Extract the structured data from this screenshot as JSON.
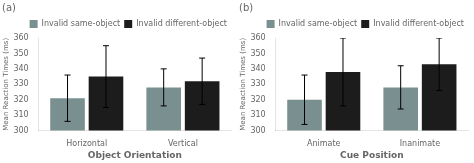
{
  "chart_data": [
    {
      "type": "bar",
      "title": "(a)",
      "xlabel": "Object Orientation",
      "ylabel": "Mean Reaction Times (ms)",
      "categories": [
        "Horizontal",
        "Vertical"
      ],
      "series": [
        {
          "name": "Invalid same-object",
          "color": "#7a9090",
          "values": [
            321,
            328
          ],
          "errors": [
            15,
            12
          ]
        },
        {
          "name": "Invalid different-object",
          "color": "#1c1c1c",
          "values": [
            335,
            332
          ],
          "errors": [
            20,
            15
          ]
        }
      ],
      "ylim": [
        300,
        360
      ],
      "yticks": [
        300,
        310,
        320,
        330,
        340,
        350,
        360
      ],
      "grid": false,
      "legend": "upper right"
    },
    {
      "type": "bar",
      "title": "(b)",
      "xlabel": "Cue Position",
      "ylabel": "Mean Reaction Times (ms)",
      "categories": [
        "Animate",
        "Inanimate"
      ],
      "series": [
        {
          "name": "Invalid same-object",
          "color": "#7a9090",
          "values": [
            320,
            328
          ],
          "errors": [
            16,
            14
          ]
        },
        {
          "name": "Invalid different-object",
          "color": "#1c1c1c",
          "values": [
            338,
            343
          ],
          "errors": [
            22,
            17
          ]
        }
      ],
      "ylim": [
        300,
        360
      ],
      "yticks": [
        300,
        310,
        320,
        330,
        340,
        350,
        360
      ],
      "grid": false,
      "legend": "upper right"
    }
  ]
}
